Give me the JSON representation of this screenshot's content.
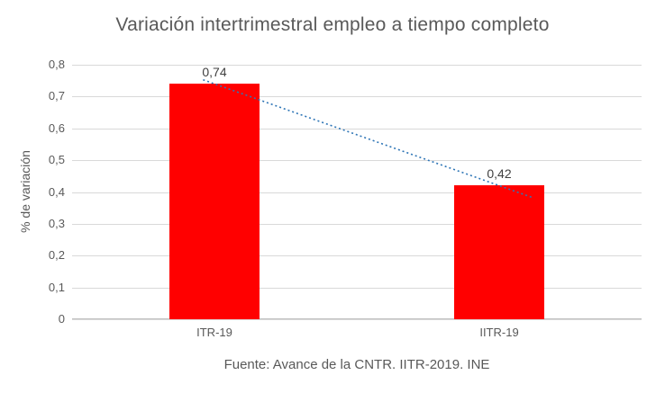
{
  "chart_data": {
    "type": "bar",
    "title": "Variación intertrimestral empleo a tiempo completo",
    "ylabel": "% de variación",
    "xlabel": "",
    "categories": [
      "ITR-19",
      "IITR-19"
    ],
    "values": [
      0.74,
      0.42
    ],
    "data_labels": [
      "0,74",
      "0,42"
    ],
    "ylim": [
      0,
      0.8
    ],
    "yticks": [
      0,
      0.1,
      0.2,
      0.3,
      0.4,
      0.5,
      0.6,
      0.7,
      0.8
    ],
    "ytick_labels": [
      "0",
      "0,1",
      "0,2",
      "0,3",
      "0,4",
      "0,5",
      "0,6",
      "0,7",
      "0,8"
    ],
    "grid": true,
    "legend": "none",
    "bar_color": "#ff0000",
    "trendline": {
      "type": "linear",
      "style": "dotted",
      "color": "#2e75b6"
    },
    "caption": "Fuente: Avance de la CNTR. IITR-2019. INE"
  }
}
